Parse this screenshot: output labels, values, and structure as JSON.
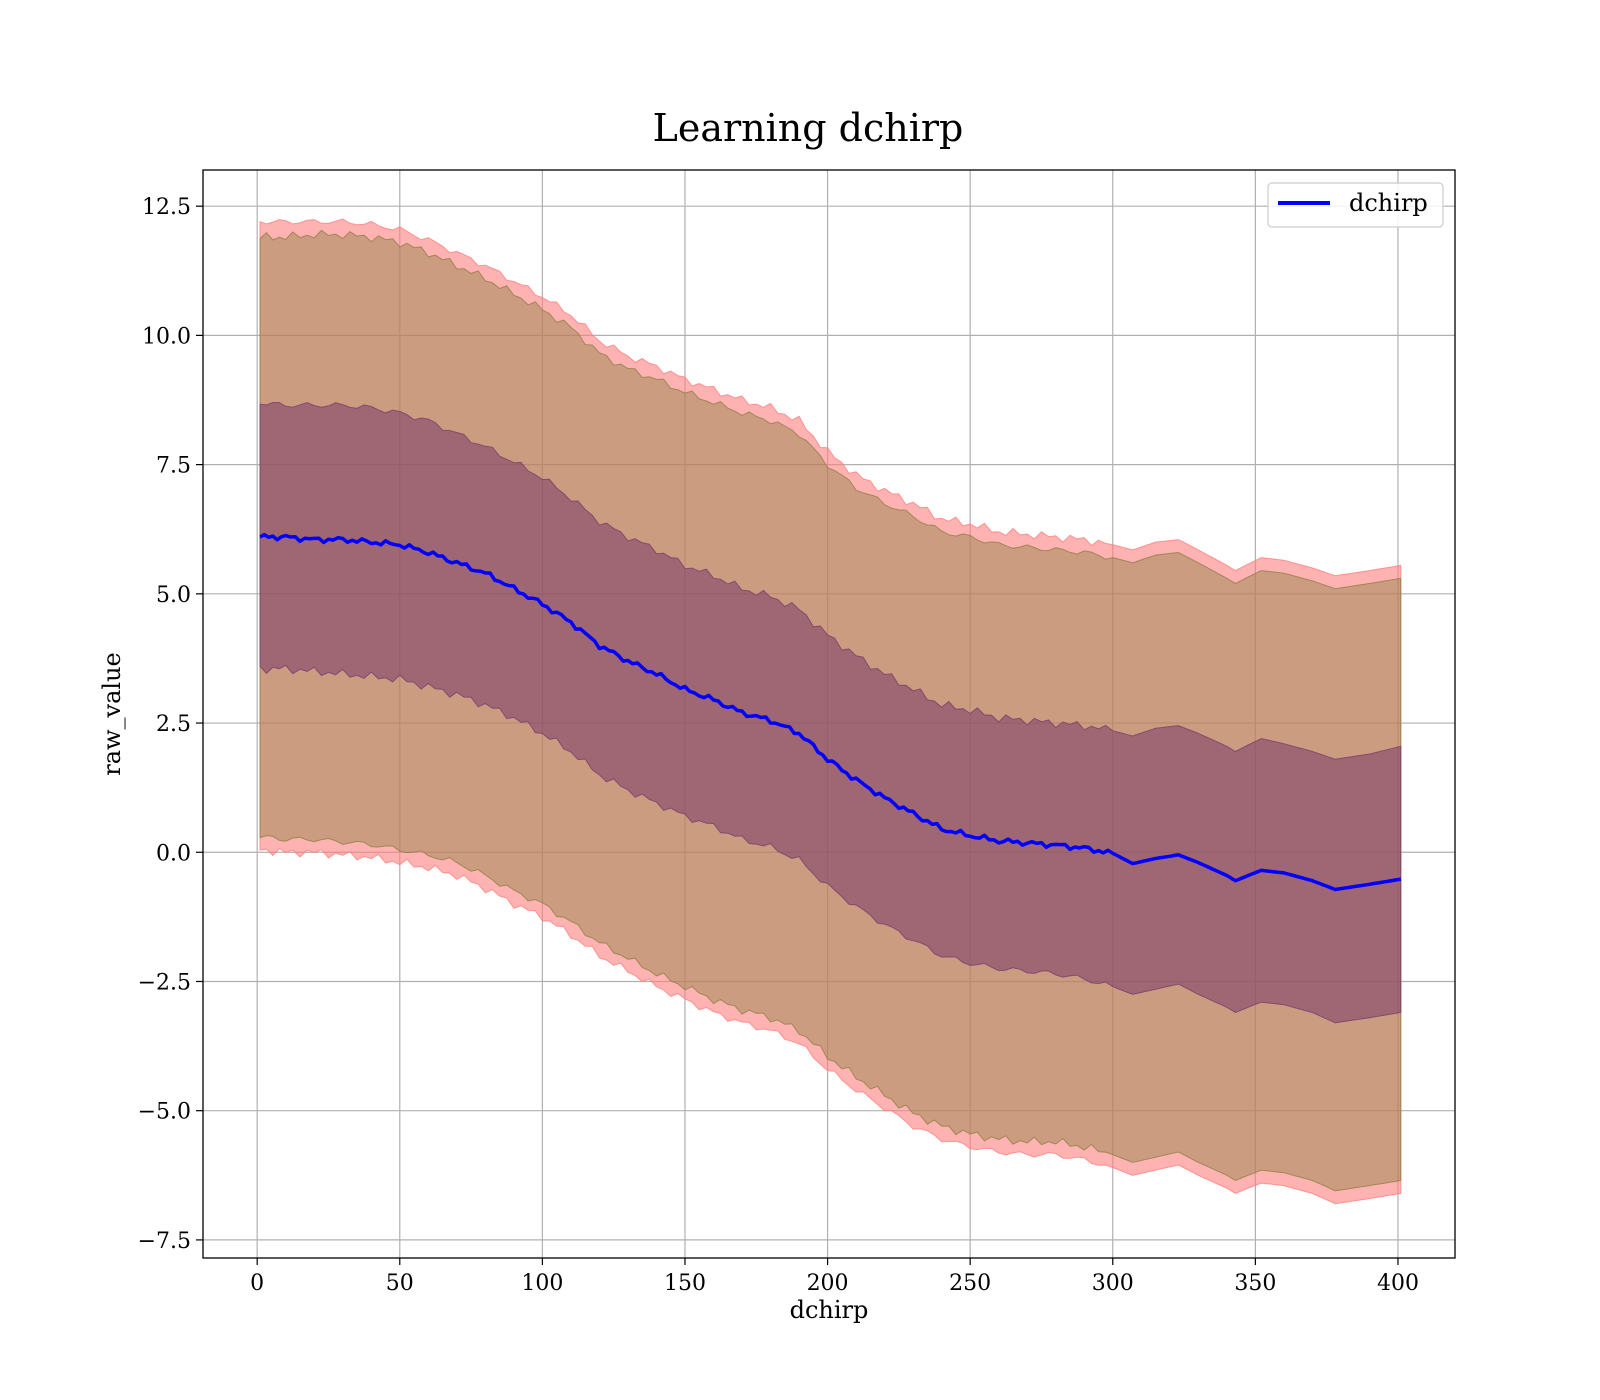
{
  "chart_data": {
    "type": "line",
    "title": "Learning dchirp",
    "xlabel": "dchirp",
    "ylabel": "raw_value",
    "xlim": [
      -19,
      420
    ],
    "ylim": [
      -7.85,
      13.2
    ],
    "x_ticks": [
      0,
      50,
      100,
      150,
      200,
      250,
      300,
      350,
      400
    ],
    "x_tick_labels": [
      "0",
      "50",
      "100",
      "150",
      "200",
      "250",
      "300",
      "350",
      "400"
    ],
    "y_ticks": [
      -7.5,
      -5.0,
      -2.5,
      0.0,
      2.5,
      5.0,
      7.5,
      10.0,
      12.5
    ],
    "y_tick_labels": [
      "−7.5",
      "−5.0",
      "−2.5",
      "0.0",
      "2.5",
      "5.0",
      "7.5",
      "10.0",
      "12.5"
    ],
    "grid": true,
    "legend_position": "top-right",
    "series": [
      {
        "name": "dchirp",
        "color": "#0000ff",
        "x": [
          1,
          10,
          20,
          30,
          40,
          50,
          60,
          70,
          80,
          90,
          100,
          110,
          120,
          130,
          140,
          150,
          160,
          170,
          180,
          190,
          200,
          210,
          220,
          230,
          240,
          250,
          260,
          270,
          280,
          290,
          300,
          307,
          315,
          323,
          330,
          340,
          343,
          352,
          360,
          370,
          378,
          390,
          401
        ],
        "y": [
          6.1,
          6.1,
          6.05,
          6.05,
          6.0,
          5.95,
          5.8,
          5.6,
          5.4,
          5.1,
          4.8,
          4.45,
          4.0,
          3.7,
          3.45,
          3.15,
          2.95,
          2.7,
          2.55,
          2.3,
          1.8,
          1.4,
          1.05,
          0.75,
          0.45,
          0.32,
          0.22,
          0.18,
          0.14,
          0.08,
          -0.02,
          -0.22,
          -0.12,
          -0.05,
          -0.2,
          -0.45,
          -0.55,
          -0.35,
          -0.4,
          -0.55,
          -0.72,
          -0.62,
          -0.52
        ]
      }
    ],
    "bands": [
      {
        "color": "#ff7f7f",
        "opacity": 0.6,
        "x": [
          1,
          10,
          20,
          30,
          40,
          50,
          60,
          70,
          80,
          90,
          100,
          110,
          120,
          130,
          140,
          150,
          160,
          170,
          180,
          190,
          200,
          210,
          220,
          230,
          240,
          250,
          260,
          270,
          280,
          290,
          300,
          307,
          315,
          323,
          330,
          340,
          343,
          352,
          360,
          370,
          378,
          390,
          401
        ],
        "upper": [
          12.2,
          12.2,
          12.2,
          12.2,
          12.15,
          12.05,
          11.85,
          11.6,
          11.35,
          11.05,
          10.75,
          10.4,
          9.9,
          9.6,
          9.4,
          9.15,
          8.95,
          8.75,
          8.6,
          8.35,
          7.75,
          7.3,
          7.0,
          6.75,
          6.45,
          6.35,
          6.2,
          6.15,
          6.1,
          6.05,
          5.95,
          5.85,
          6.0,
          6.05,
          5.85,
          5.55,
          5.45,
          5.7,
          5.65,
          5.5,
          5.35,
          5.45,
          5.55
        ],
        "lower": [
          0.05,
          0.0,
          0.0,
          -0.05,
          -0.1,
          -0.2,
          -0.3,
          -0.45,
          -0.7,
          -1.0,
          -1.25,
          -1.6,
          -2.0,
          -2.3,
          -2.6,
          -2.85,
          -3.1,
          -3.3,
          -3.45,
          -3.7,
          -4.2,
          -4.6,
          -4.95,
          -5.3,
          -5.55,
          -5.7,
          -5.8,
          -5.85,
          -5.85,
          -5.95,
          -6.1,
          -6.25,
          -6.15,
          -6.05,
          -6.25,
          -6.5,
          -6.6,
          -6.4,
          -6.45,
          -6.6,
          -6.8,
          -6.7,
          -6.6
        ]
      },
      {
        "color": "#8f8045",
        "opacity": 0.45,
        "x": [
          1,
          10,
          20,
          30,
          40,
          50,
          60,
          70,
          80,
          90,
          100,
          110,
          120,
          130,
          140,
          150,
          160,
          170,
          180,
          190,
          200,
          210,
          220,
          230,
          240,
          250,
          260,
          270,
          280,
          290,
          300,
          307,
          315,
          323,
          330,
          340,
          343,
          352,
          360,
          370,
          378,
          390,
          401
        ],
        "upper": [
          11.9,
          11.9,
          11.95,
          11.95,
          11.9,
          11.8,
          11.6,
          11.35,
          11.1,
          10.8,
          10.5,
          10.15,
          9.65,
          9.35,
          9.15,
          8.9,
          8.7,
          8.5,
          8.35,
          8.1,
          7.5,
          7.05,
          6.75,
          6.5,
          6.2,
          6.1,
          5.95,
          5.9,
          5.85,
          5.8,
          5.7,
          5.6,
          5.75,
          5.8,
          5.6,
          5.3,
          5.2,
          5.45,
          5.4,
          5.25,
          5.1,
          5.2,
          5.3
        ],
        "lower": [
          0.3,
          0.25,
          0.25,
          0.2,
          0.15,
          0.05,
          -0.05,
          -0.2,
          -0.45,
          -0.75,
          -1.0,
          -1.35,
          -1.75,
          -2.05,
          -2.35,
          -2.6,
          -2.85,
          -3.05,
          -3.2,
          -3.45,
          -3.95,
          -4.35,
          -4.7,
          -5.05,
          -5.3,
          -5.45,
          -5.55,
          -5.6,
          -5.6,
          -5.7,
          -5.85,
          -6.0,
          -5.9,
          -5.8,
          -6.0,
          -6.25,
          -6.35,
          -6.15,
          -6.2,
          -6.35,
          -6.55,
          -6.45,
          -6.35
        ]
      },
      {
        "color": "#7a3d6a",
        "opacity": 0.55,
        "x": [
          1,
          10,
          20,
          30,
          40,
          50,
          60,
          70,
          80,
          90,
          100,
          110,
          120,
          130,
          140,
          150,
          160,
          170,
          180,
          190,
          200,
          210,
          220,
          230,
          240,
          250,
          260,
          270,
          280,
          290,
          300,
          307,
          315,
          323,
          330,
          340,
          343,
          352,
          360,
          370,
          378,
          390,
          401
        ],
        "upper": [
          8.7,
          8.65,
          8.65,
          8.65,
          8.6,
          8.5,
          8.35,
          8.1,
          7.85,
          7.55,
          7.25,
          6.85,
          6.4,
          6.1,
          5.85,
          5.55,
          5.35,
          5.1,
          4.95,
          4.7,
          4.2,
          3.8,
          3.45,
          3.15,
          2.85,
          2.75,
          2.6,
          2.55,
          2.5,
          2.45,
          2.35,
          2.25,
          2.4,
          2.45,
          2.3,
          2.05,
          1.95,
          2.2,
          2.1,
          1.95,
          1.8,
          1.9,
          2.05
        ],
        "lower": [
          3.55,
          3.55,
          3.5,
          3.45,
          3.4,
          3.35,
          3.2,
          3.05,
          2.85,
          2.6,
          2.3,
          1.95,
          1.5,
          1.2,
          0.95,
          0.7,
          0.5,
          0.25,
          0.1,
          -0.15,
          -0.65,
          -1.05,
          -1.4,
          -1.7,
          -2.0,
          -2.15,
          -2.25,
          -2.3,
          -2.35,
          -2.45,
          -2.6,
          -2.75,
          -2.65,
          -2.55,
          -2.75,
          -3.0,
          -3.1,
          -2.9,
          -2.95,
          -3.1,
          -3.3,
          -3.2,
          -3.1
        ]
      }
    ]
  }
}
